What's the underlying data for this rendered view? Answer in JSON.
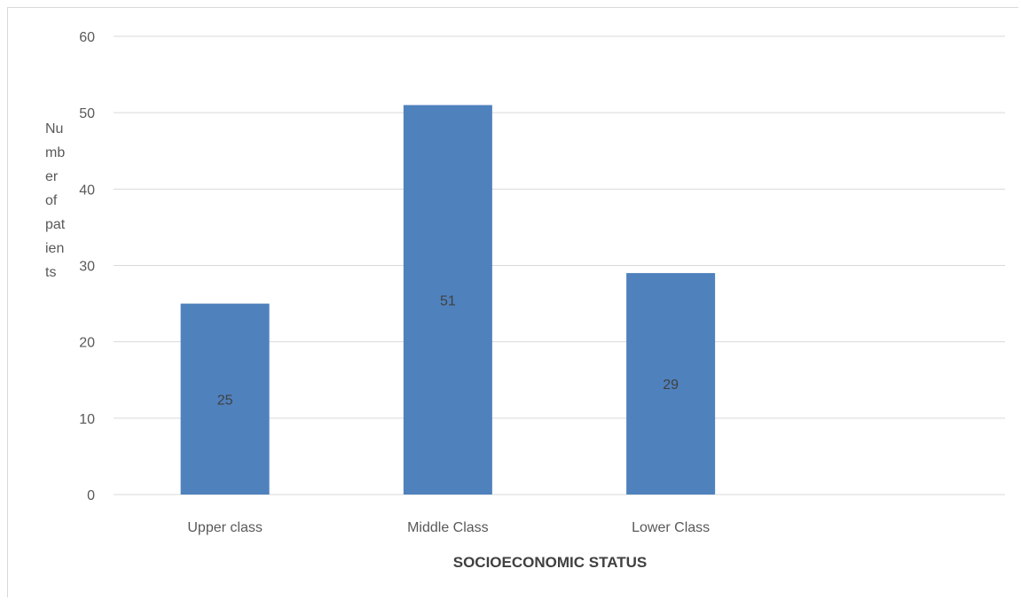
{
  "chart_data": {
    "type": "bar",
    "categories": [
      "Upper class",
      "Middle Class",
      "Lower Class"
    ],
    "values": [
      25,
      51,
      29
    ],
    "data_labels": [
      "25",
      "51",
      "29"
    ],
    "xlabel": "SOCIOECONOMIC STATUS",
    "ylabel_lines": [
      "Nu",
      "mb",
      "er",
      "of",
      "pat",
      "ien",
      "ts"
    ],
    "ylim": [
      0,
      60
    ],
    "yticks": [
      0,
      10,
      20,
      30,
      40,
      50,
      60
    ],
    "grid": true,
    "colors": {
      "bar": "#4f81bd",
      "grid": "#d9d9d9",
      "text": "#595959"
    }
  }
}
